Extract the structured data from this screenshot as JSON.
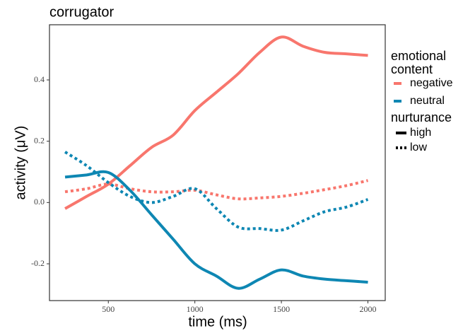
{
  "chart_data": {
    "type": "line",
    "title": "corrugator",
    "x_label": "time (ms)",
    "y_label": "activity (μV)",
    "x": [
      250,
      375,
      500,
      625,
      750,
      875,
      1000,
      1125,
      1250,
      1375,
      1500,
      1625,
      1750,
      1875,
      2000
    ],
    "series": [
      {
        "color": "#f8766d",
        "dash": "solid",
        "values": [
          -0.02,
          0.02,
          0.06,
          0.12,
          0.18,
          0.22,
          0.3,
          0.36,
          0.42,
          0.49,
          0.54,
          0.51,
          0.49,
          0.485,
          0.48
        ]
      },
      {
        "color": "#f8766d",
        "dash": "dotted",
        "values": [
          0.035,
          0.045,
          0.06,
          0.045,
          0.035,
          0.035,
          0.04,
          0.025,
          0.012,
          0.015,
          0.02,
          0.03,
          0.042,
          0.055,
          0.072
        ]
      },
      {
        "color": "#0e87b3",
        "dash": "solid",
        "values": [
          0.083,
          0.09,
          0.098,
          0.04,
          -0.04,
          -0.12,
          -0.2,
          -0.24,
          -0.28,
          -0.25,
          -0.22,
          -0.24,
          -0.25,
          -0.255,
          -0.26
        ]
      },
      {
        "color": "#0e87b3",
        "dash": "dotted",
        "values": [
          0.165,
          0.12,
          0.065,
          0.02,
          0.0,
          0.02,
          0.045,
          -0.02,
          -0.08,
          -0.085,
          -0.09,
          -0.06,
          -0.03,
          -0.015,
          0.01
        ]
      }
    ],
    "xlim": [
      160,
      2100
    ],
    "xticks": [
      500,
      1000,
      1500,
      2000
    ],
    "ylim": [
      -0.32,
      0.58
    ],
    "yticks": [
      {
        "value": -0.2,
        "label": "-0.2"
      },
      {
        "value": 0,
        "label": "0.0"
      },
      0.2,
      0.4
    ],
    "grid": false,
    "legend_color": {
      "title": [
        "emotional",
        "content"
      ],
      "items": [
        {
          "label": "negative",
          "color": "#f8766d"
        },
        {
          "label": "neutral",
          "color": "#0e87b3"
        }
      ]
    },
    "legend_linetype": {
      "title": "nurturance",
      "items": [
        {
          "label": "high",
          "dash": "solid"
        },
        {
          "label": "low",
          "dash": "dotted"
        }
      ]
    }
  }
}
